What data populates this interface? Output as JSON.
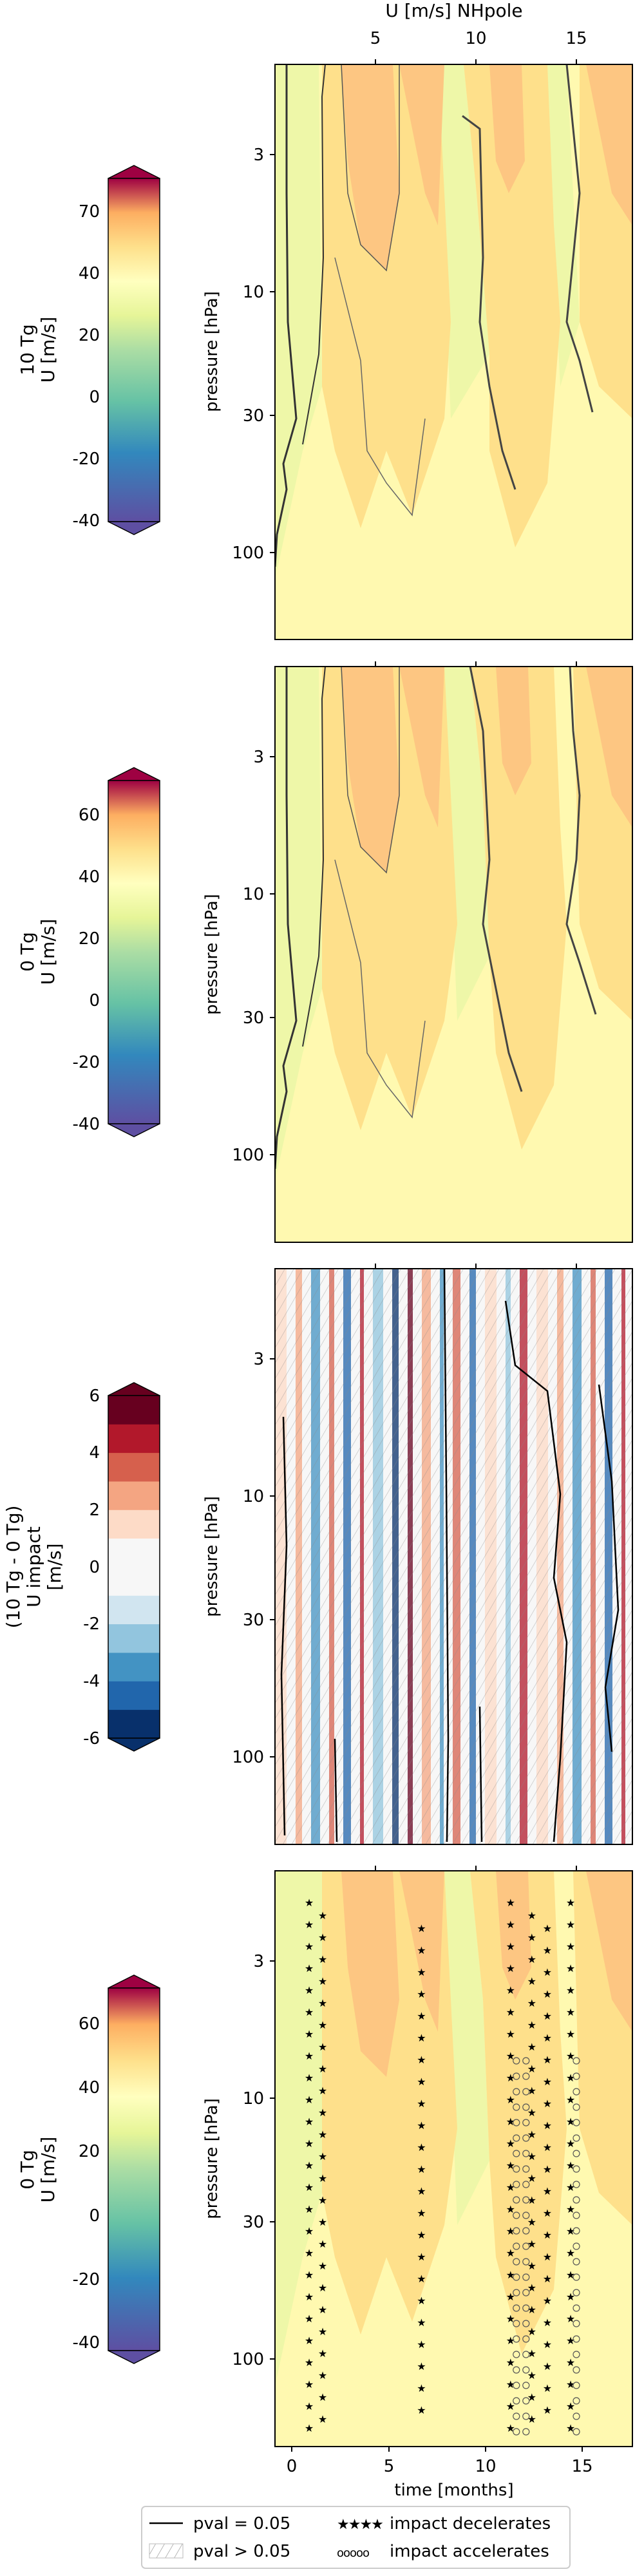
{
  "figure": {
    "top_axis_label": "U [m/s] NHpole",
    "bottom_axis_label": "time [months]"
  },
  "chart_data": [
    {
      "type": "heatmap",
      "panel": "10 Tg",
      "colorbar_label": [
        "10 Tg",
        "U [m/s]"
      ],
      "colorbar_ticks": [
        70,
        60,
        40,
        20,
        0,
        -20,
        -40
      ],
      "colorbar_levels": [
        -40,
        -30,
        -20,
        -10,
        0,
        10,
        20,
        30,
        40,
        50,
        60,
        70
      ],
      "xlabel": "",
      "ylabel": "pressure [hPa]",
      "x_ticks": [
        5,
        10,
        15
      ],
      "xlim": [
        -1,
        18
      ],
      "y_ticks": [
        3,
        10,
        30,
        100
      ],
      "ylim": [
        1,
        200
      ],
      "y_scale": "log"
    },
    {
      "type": "heatmap",
      "panel": "0 Tg",
      "colorbar_label": [
        "0 Tg",
        "U [m/s]"
      ],
      "colorbar_ticks": [
        60,
        40,
        20,
        0,
        -20,
        -40
      ],
      "colorbar_levels": [
        -40,
        -30,
        -20,
        -10,
        0,
        10,
        20,
        30,
        40,
        50,
        60,
        70
      ],
      "xlabel": "",
      "ylabel": "pressure [hPa]",
      "x_ticks": [],
      "xlim": [
        -1,
        18
      ],
      "y_ticks": [
        3,
        10,
        30,
        100
      ],
      "ylim": [
        1,
        200
      ],
      "y_scale": "log"
    },
    {
      "type": "heatmap",
      "panel": "(10 Tg - 0 Tg)",
      "colorbar_label": [
        "(10 Tg - 0 Tg)",
        "U impact",
        "[m/s]"
      ],
      "colorbar_ticks": [
        6,
        4,
        2,
        0,
        -2,
        -4,
        -6
      ],
      "colorbar_levels": [
        -6,
        -5,
        -4,
        -3,
        -2,
        -1,
        0,
        1,
        2,
        3,
        4,
        5,
        6
      ],
      "xlabel": "",
      "ylabel": "pressure [hPa]",
      "x_ticks": [],
      "xlim": [
        -1,
        18
      ],
      "y_ticks": [
        3,
        10,
        30,
        100
      ],
      "ylim": [
        1,
        200
      ],
      "y_scale": "log",
      "hatched_where": "pval > 0.05"
    },
    {
      "type": "heatmap",
      "panel": "0 Tg with impact markers",
      "colorbar_label": [
        "0 Tg",
        "U [m/s]"
      ],
      "colorbar_ticks": [
        60,
        40,
        20,
        0,
        -20,
        -40
      ],
      "colorbar_levels": [
        -40,
        -30,
        -20,
        -10,
        0,
        10,
        20,
        30,
        40,
        50,
        60,
        70
      ],
      "xlabel": "time [months]",
      "ylabel": "pressure [hPa]",
      "x_ticks": [
        0,
        5,
        10,
        15
      ],
      "xlim": [
        -1,
        18
      ],
      "y_ticks": [
        3,
        10,
        30,
        100
      ],
      "ylim": [
        1,
        200
      ],
      "y_scale": "log",
      "impact_decelerates_months": [
        0.9,
        1.6,
        6.7,
        11.3,
        12.4,
        13.2,
        14.4
      ],
      "impact_accelerates_months": [
        11.6,
        12.1,
        14.7
      ]
    }
  ],
  "legend": {
    "placement": "bottom-center",
    "items": [
      {
        "label": "pval = 0.05",
        "style": "line"
      },
      {
        "label": "impact decelerates",
        "style": "stars"
      },
      {
        "label": "pval > 0.05",
        "style": "hatch"
      },
      {
        "label": "impact accelerates",
        "style": "circles"
      }
    ]
  },
  "colors": {
    "u_scale": [
      "#5e4fa2",
      "#3288bd",
      "#66c2a5",
      "#abdda4",
      "#e6f598",
      "#ffffbf",
      "#fee08b",
      "#fdae61",
      "#f46d43",
      "#d53e4f",
      "#9e0142"
    ],
    "impact_scale": [
      "#08306b",
      "#2166ac",
      "#4393c3",
      "#92c5de",
      "#d1e5f0",
      "#f7f7f7",
      "#fddbc7",
      "#f4a582",
      "#d6604d",
      "#b2182b",
      "#67001f"
    ]
  }
}
